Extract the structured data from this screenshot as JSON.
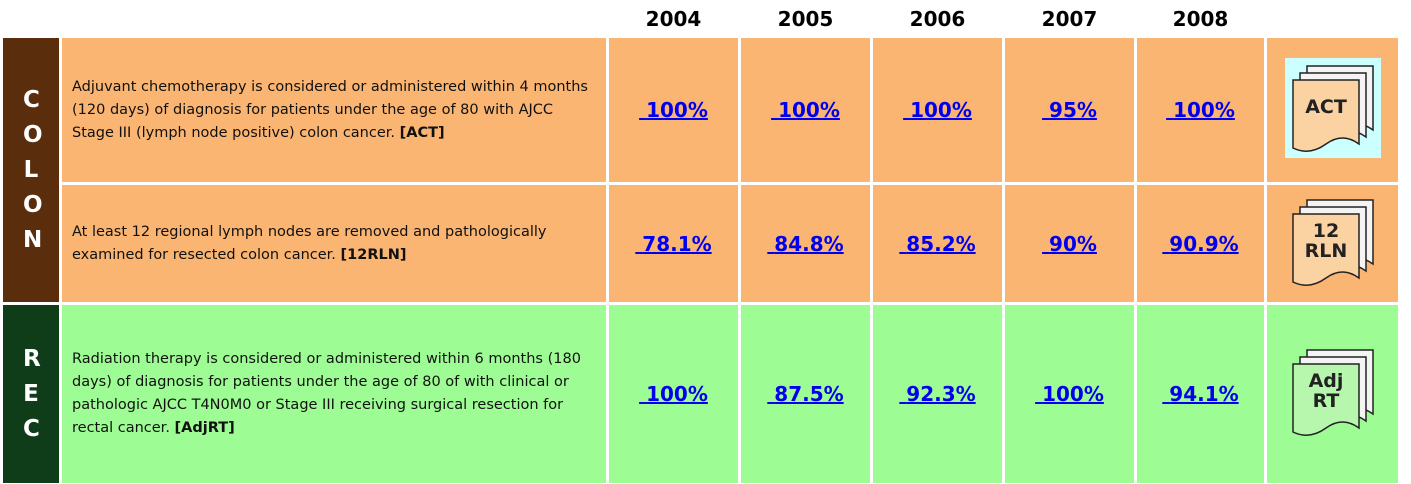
{
  "header": {
    "years": [
      "2004",
      "2005",
      "2006",
      "2007",
      "2008"
    ]
  },
  "groups": [
    {
      "label": "COLON",
      "rows": [
        {
          "description": [
            "Adjuvant chemotherapy is considered or",
            "administered within 4 months (120 days) of",
            "diagnosis for patients under the age of 80 with",
            "AJCC Stage III (lymph node positive) colon cancer."
          ],
          "code": "[ACT]",
          "values": [
            "100%",
            "100%",
            "100%",
            "95%",
            "100%"
          ],
          "icon": [
            "ACT"
          ]
        },
        {
          "description": [
            "At least 12 regional lymph nodes are removed and",
            "pathologically examined for resected colon cancer."
          ],
          "code": "[12RLN]",
          "values": [
            "78.1%",
            "84.8%",
            "85.2%",
            "90%",
            "90.9%"
          ],
          "icon": [
            "12",
            "RLN"
          ]
        }
      ]
    },
    {
      "label": "REC",
      "rows": [
        {
          "description": [
            "Radiation therapy is considered or administered",
            "within 6 months (180 days) of diagnosis for",
            "patients under the age of 80 of with clinical or",
            "pathologic AJCC T4N0M0 or Stage III receiving",
            "surgical resection for rectal cancer."
          ],
          "code": "[AdjRT]",
          "values": [
            "100%",
            "87.5%",
            "92.3%",
            "100%",
            "94.1%"
          ],
          "icon": [
            "Adj",
            "RT"
          ]
        }
      ]
    }
  ]
}
